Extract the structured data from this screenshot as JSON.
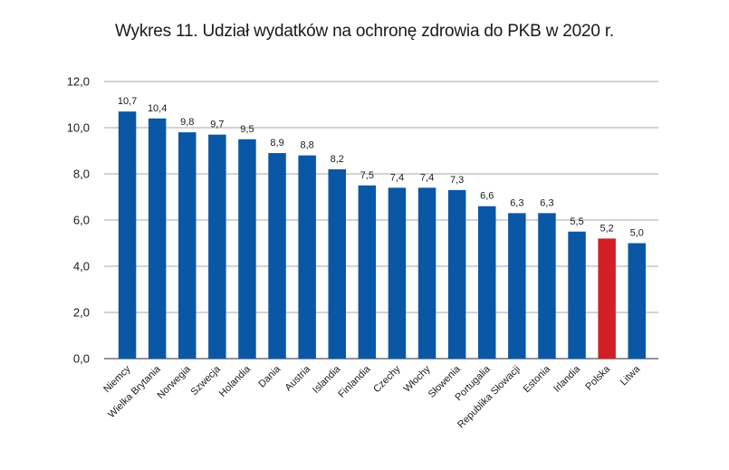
{
  "chart_data": {
    "type": "bar",
    "title": "Wykres 11. Udział wydatków na ochronę zdrowia do PKB w 2020 r.",
    "xlabel": "",
    "ylabel": "",
    "ylim": [
      0,
      12
    ],
    "yticks": [
      "0,0",
      "2,0",
      "4,0",
      "6,0",
      "8,0",
      "10,0",
      "12,0"
    ],
    "grid": "horizontal",
    "categories": [
      "Niemcy",
      "Wielka Brytania",
      "Norwegia",
      "Szwecja",
      "Holandia",
      "Dania",
      "Austria",
      "Islandia",
      "Finlandia",
      "Czechy",
      "Włochy",
      "Słowenia",
      "Portugalia",
      "Republika Słowacji",
      "Estonia",
      "Irlandia",
      "Polska",
      "Litwa"
    ],
    "values": [
      10.7,
      10.4,
      9.8,
      9.7,
      9.5,
      8.9,
      8.8,
      8.2,
      7.5,
      7.4,
      7.4,
      7.3,
      6.6,
      6.3,
      6.3,
      5.5,
      5.2,
      5.0
    ],
    "value_labels": [
      "10,7",
      "10,4",
      "9,8",
      "9,7",
      "9,5",
      "8,9",
      "8,8",
      "8,2",
      "7,5",
      "7,4",
      "7,4",
      "7,3",
      "6,6",
      "6,3",
      "6,3",
      "5,5",
      "5,2",
      "5,0"
    ],
    "colors": {
      "default": "#0a57a6",
      "highlight": "#d21f26",
      "highlight_category": "Polska",
      "grid": "#8a8a8a"
    }
  }
}
